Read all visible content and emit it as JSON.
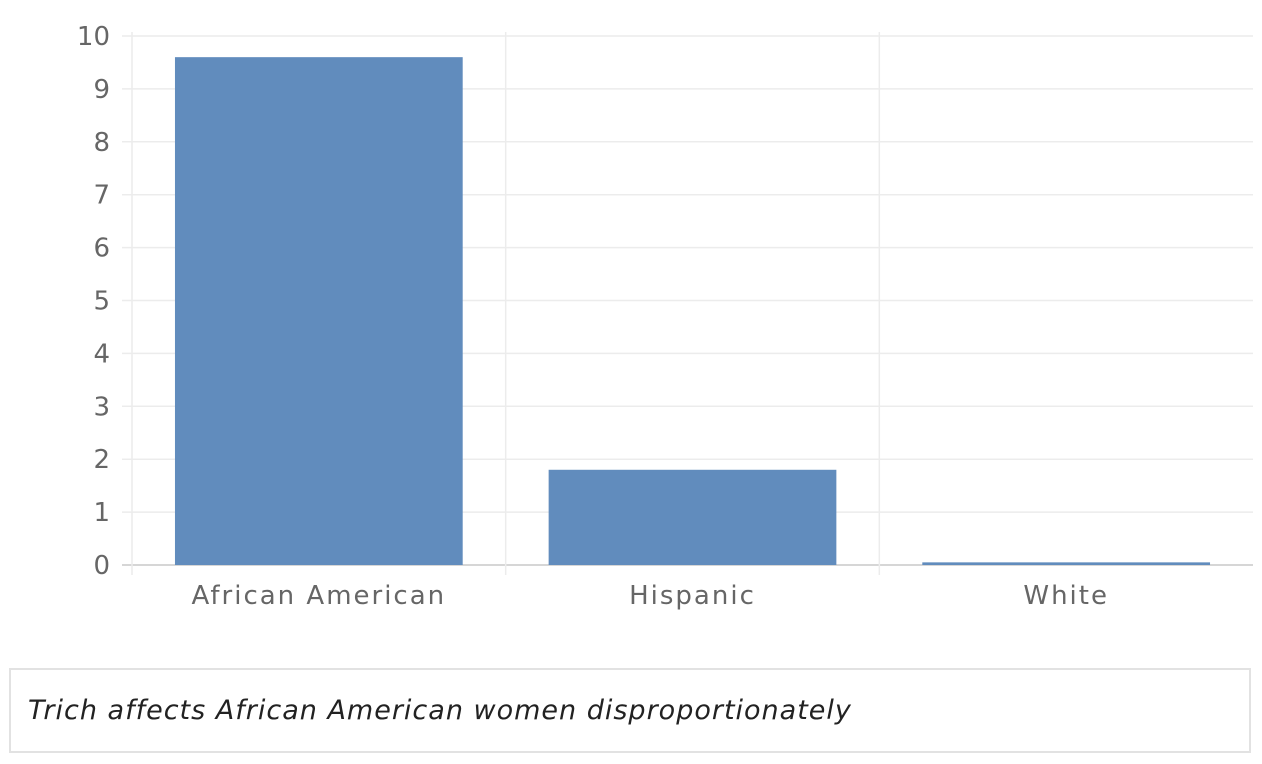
{
  "chart_data": {
    "type": "bar",
    "categories": [
      "African American",
      "Hispanic",
      "White"
    ],
    "values": [
      9.6,
      1.8,
      0.05
    ],
    "ylim": [
      0,
      10
    ],
    "yticks": [
      0,
      1,
      2,
      3,
      4,
      5,
      6,
      7,
      8,
      9,
      10
    ],
    "xlabel": "",
    "ylabel": "",
    "grid": true,
    "bar_color": "#618cbd",
    "grid_color": "#ececec"
  },
  "caption": {
    "text": "Trich affects African American women disproportionately"
  }
}
